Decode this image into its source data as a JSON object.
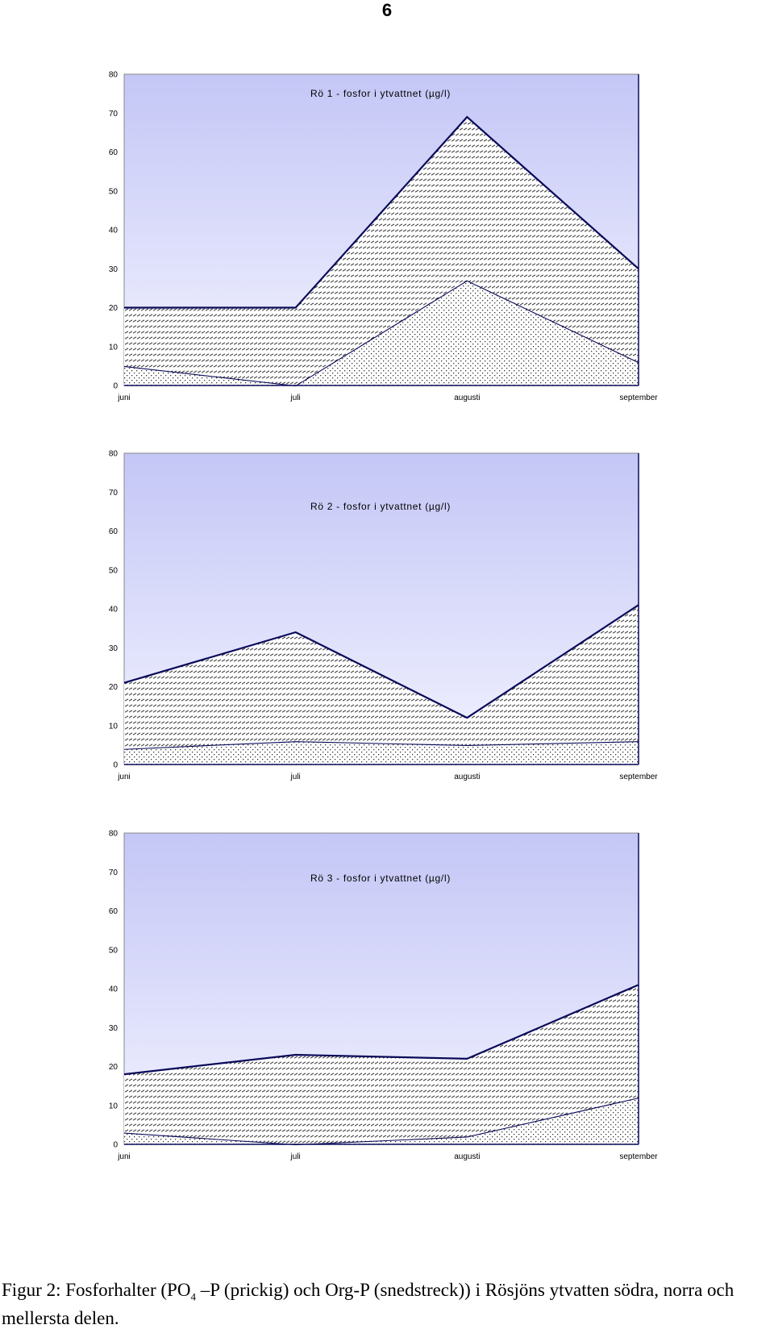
{
  "page_number": "6",
  "caption": {
    "pre": "Figur 2: Fosforhalter (PO",
    "sub": "4",
    "post": " –P (prickig) och Org-P (snedstreck)) i Rösjöns ytvatten södra, norra och mellersta delen."
  },
  "colors": {
    "bg_top": "#c4c6f6",
    "bg_bottom": "#f2f3ff",
    "line": "#0a0a5a",
    "pattern": "#333333"
  },
  "chart_data": [
    {
      "type": "area",
      "stacked": true,
      "title": "Rö 1 - fosfor i ytvattnet (µg/l)",
      "categories": [
        "juni",
        "juli",
        "augusti",
        "september"
      ],
      "ylim": [
        0,
        80
      ],
      "yticks": [
        "0",
        "10",
        "20",
        "30",
        "40",
        "50",
        "60",
        "70",
        "80"
      ],
      "series": [
        {
          "fill": "dotted",
          "values": [
            5,
            0,
            27,
            6
          ]
        },
        {
          "fill": "hatched",
          "values": [
            15,
            20,
            42,
            24
          ]
        }
      ]
    },
    {
      "type": "area",
      "stacked": true,
      "title": "Rö 2 - fosfor i ytvattnet (µg/l)",
      "categories": [
        "juni",
        "juli",
        "augusti",
        "september"
      ],
      "ylim": [
        0,
        80
      ],
      "yticks": [
        "0",
        "10",
        "20",
        "30",
        "40",
        "50",
        "60",
        "70",
        "80"
      ],
      "series": [
        {
          "fill": "dotted",
          "values": [
            4,
            6,
            5,
            6
          ]
        },
        {
          "fill": "hatched",
          "values": [
            17,
            28,
            7,
            35
          ]
        }
      ]
    },
    {
      "type": "area",
      "stacked": true,
      "title": "Rö 3 - fosfor i ytvattnet (µg/l)",
      "categories": [
        "juni",
        "juli",
        "augusti",
        "september"
      ],
      "ylim": [
        0,
        80
      ],
      "yticks": [
        "0",
        "10",
        "20",
        "30",
        "40",
        "50",
        "60",
        "70",
        "80"
      ],
      "series": [
        {
          "fill": "dotted",
          "values": [
            3,
            0,
            2,
            12
          ]
        },
        {
          "fill": "hatched",
          "values": [
            15,
            23,
            20,
            29
          ]
        }
      ]
    }
  ]
}
